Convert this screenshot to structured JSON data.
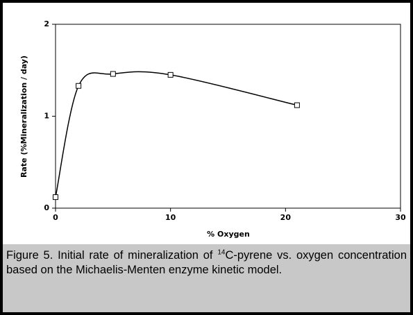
{
  "chart_data": {
    "type": "line",
    "x_label": "% Oxygen",
    "y_label": "Rate (%Mineralization / day)",
    "x": [
      0,
      2,
      5,
      10,
      21
    ],
    "values": [
      0.12,
      1.33,
      1.46,
      1.45,
      1.12
    ],
    "color": "#000000",
    "xlim": [
      0,
      30
    ],
    "xticks": [
      0,
      10,
      20,
      30
    ],
    "ylim": [
      0,
      2
    ],
    "yticks": [
      0,
      1,
      2
    ]
  },
  "caption": {
    "before": "Figure 5. Initial rate of mineralization of ",
    "superscript": "14",
    "after": "C-pyrene vs. oxygen concentration based on the Michaelis-Menten enzyme kinetic model."
  }
}
